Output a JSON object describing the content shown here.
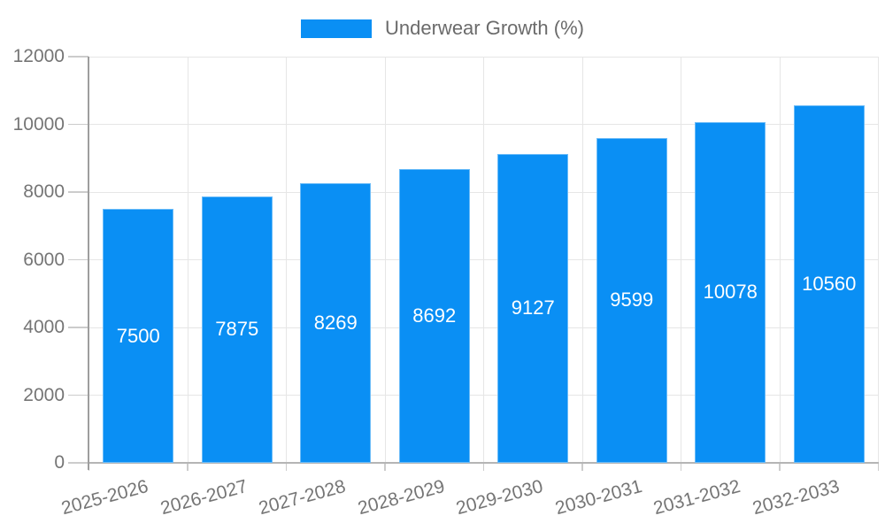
{
  "chart_data": {
    "type": "bar",
    "title": "",
    "xlabel": "",
    "ylabel": "",
    "legend_position": "top",
    "grid": true,
    "categories": [
      "2025-2026",
      "2026-2027",
      "2027-2028",
      "2028-2029",
      "2029-2030",
      "2030-2031",
      "2031-2032",
      "2032-2033"
    ],
    "series": [
      {
        "name": "Underwear Growth (%)",
        "values": [
          7500,
          7875,
          8269,
          8692,
          9127,
          9599,
          10078,
          10560
        ]
      }
    ],
    "value_labels": [
      "7500",
      "7875",
      "8269",
      "8692",
      "9127",
      "9599",
      "10078",
      "10560"
    ],
    "ylim": [
      0,
      12000
    ],
    "yticks": [
      0,
      2000,
      4000,
      6000,
      8000,
      10000,
      12000
    ],
    "ytick_labels": [
      "0",
      "2000",
      "4000",
      "6000",
      "8000",
      "10000",
      "12000"
    ],
    "colors": {
      "bar": "#0a8ff4",
      "grid": "#e6e6e6",
      "axis_y": "#9e9e9e",
      "axis_x": "#b5b5b5",
      "tick": "#cccccc",
      "axis_text": "#757575",
      "value_label": "#ffffff",
      "legend_text": "#6b6b6b",
      "background": "#ffffff"
    }
  }
}
